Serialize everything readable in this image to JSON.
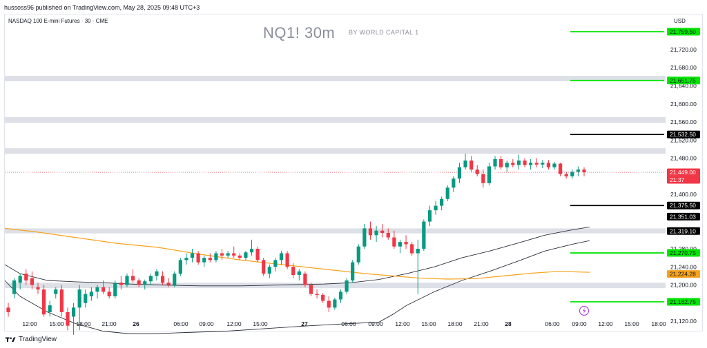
{
  "header": {
    "published_by": "hussoss96 published on TradingView.com, May 28, 2025 09:48 UTC+3",
    "symbol_line": "NASDAQ 100 E-mini Futures · 30 · CME",
    "watermark_title": "NQ1! 30m",
    "watermark_subtitle": "BY WORLD CAPITAL 1",
    "currency": "USD"
  },
  "footer": {
    "brand": "TradingView"
  },
  "colors": {
    "up": "#089981",
    "down": "#f23645",
    "green_line": "#00e600",
    "black_line": "#000000",
    "zone": "#dde0e6",
    "ma_orange": "#f7a21b",
    "band": "#2a2e39",
    "last_price": "#f23645",
    "orange_tag": "#f7a21b"
  },
  "chart_data": {
    "type": "candlestick",
    "y_axis": {
      "range": [
        21086,
        21800
      ],
      "ticks": [
        "21,720.00",
        "21,680.00",
        "21,640.00",
        "21,600.00",
        "21,560.00",
        "21,520.00",
        "21,480.00",
        "21,400.00",
        "21,280.00",
        "21,240.00",
        "21,200.00",
        "21,120.00"
      ],
      "tick_values": [
        21720,
        21680,
        21640,
        21600,
        21560,
        21520,
        21480,
        21400,
        21280,
        21240,
        21200,
        21120
      ]
    },
    "x_axis": {
      "labels": [
        "12:00",
        "15:00",
        "18:00",
        "21:00",
        "26",
        "06:00",
        "09:00",
        "12:00",
        "15:00",
        "27",
        "06:00",
        "09:00",
        "12:00",
        "15:00",
        "18:00",
        "21:00",
        "28",
        "06:00",
        "09:00",
        "12:00",
        "15:00",
        "18:00"
      ],
      "bold": [
        "26",
        "27",
        "28"
      ]
    },
    "zones": [
      [
        21650,
        21662
      ],
      [
        21558,
        21571
      ],
      [
        21490,
        21502
      ],
      [
        21314,
        21325
      ],
      [
        21193,
        21205
      ]
    ],
    "level_lines": [
      {
        "price": 21759.5,
        "label": "21,759.50",
        "color": "green"
      },
      {
        "price": 21651.75,
        "label": "21,651.75",
        "color": "green"
      },
      {
        "price": 21532.5,
        "label": "21,532.50",
        "color": "black"
      },
      {
        "price": 21375.5,
        "label": "21,375.50",
        "color": "black"
      },
      {
        "price": 21270.75,
        "label": "21,270.75",
        "color": "green"
      },
      {
        "price": 21162.75,
        "label": "21,162.75",
        "color": "green"
      }
    ],
    "price_tags": [
      {
        "price": 21449.0,
        "label": "21,449.00",
        "sub": "21:37",
        "type": "last"
      },
      {
        "price": 21351.03,
        "label": "21,351.03",
        "type": "dark"
      },
      {
        "price": 21319.1,
        "label": "21,319.10",
        "type": "dark"
      },
      {
        "price": 21224.28,
        "label": "21,224.28",
        "type": "orange"
      }
    ],
    "last_price": 21449.0,
    "candles": [
      [
        21150,
        21160,
        21130,
        21140
      ],
      [
        21180,
        21215,
        21170,
        21210
      ],
      [
        21205,
        21225,
        21190,
        21220
      ],
      [
        21225,
        21235,
        21200,
        21210
      ],
      [
        21215,
        21230,
        21190,
        21200
      ],
      [
        21195,
        21205,
        21180,
        21190
      ],
      [
        21190,
        21200,
        21130,
        21135
      ],
      [
        21140,
        21165,
        21130,
        21155
      ],
      [
        21180,
        21195,
        21170,
        21190
      ],
      [
        21190,
        21200,
        21130,
        21140
      ],
      [
        21140,
        21150,
        21100,
        21110
      ],
      [
        21130,
        21160,
        21090,
        21150
      ],
      [
        21150,
        21200,
        21100,
        21190
      ],
      [
        21160,
        21190,
        21150,
        21180
      ],
      [
        21175,
        21195,
        21165,
        21185
      ],
      [
        21185,
        21200,
        21170,
        21195
      ],
      [
        21195,
        21210,
        21180,
        21185
      ],
      [
        21185,
        21195,
        21170,
        21175
      ],
      [
        21175,
        21210,
        21170,
        21205
      ],
      [
        21205,
        21220,
        21190,
        21200
      ],
      [
        21200,
        21225,
        21195,
        21220
      ],
      [
        21220,
        21235,
        21205,
        21210
      ],
      [
        21210,
        21215,
        21195,
        21200
      ],
      [
        21200,
        21212,
        21190,
        21208
      ],
      [
        21208,
        21225,
        21200,
        21220
      ],
      [
        21220,
        21235,
        21210,
        21230
      ],
      [
        21220,
        21230,
        21200,
        21205
      ],
      [
        21205,
        21215,
        21195,
        21200
      ],
      [
        21200,
        21230,
        21195,
        21225
      ],
      [
        21225,
        21260,
        21220,
        21255
      ],
      [
        21255,
        21270,
        21245,
        21260
      ],
      [
        21260,
        21280,
        21250,
        21270
      ],
      [
        21270,
        21275,
        21245,
        21250
      ],
      [
        21250,
        21265,
        21240,
        21260
      ],
      [
        21260,
        21270,
        21250,
        21255
      ],
      [
        21255,
        21275,
        21250,
        21270
      ],
      [
        21270,
        21280,
        21255,
        21265
      ],
      [
        21265,
        21275,
        21260,
        21270
      ],
      [
        21270,
        21285,
        21260,
        21265
      ],
      [
        21265,
        21270,
        21255,
        21260
      ],
      [
        21260,
        21275,
        21255,
        21272
      ],
      [
        21272,
        21300,
        21265,
        21280
      ],
      [
        21280,
        21285,
        21250,
        21255
      ],
      [
        21255,
        21260,
        21220,
        21225
      ],
      [
        21225,
        21245,
        21215,
        21240
      ],
      [
        21240,
        21260,
        21230,
        21255
      ],
      [
        21255,
        21275,
        21245,
        21270
      ],
      [
        21270,
        21275,
        21235,
        21240
      ],
      [
        21240,
        21248,
        21215,
        21222
      ],
      [
        21222,
        21235,
        21210,
        21230
      ],
      [
        21225,
        21230,
        21195,
        21200
      ],
      [
        21200,
        21205,
        21175,
        21180
      ],
      [
        21180,
        21190,
        21170,
        21178
      ],
      [
        21178,
        21182,
        21160,
        21165
      ],
      [
        21165,
        21175,
        21140,
        21150
      ],
      [
        21150,
        21172,
        21145,
        21168
      ],
      [
        21168,
        21190,
        21160,
        21185
      ],
      [
        21185,
        21215,
        21180,
        21210
      ],
      [
        21210,
        21255,
        21205,
        21250
      ],
      [
        21250,
        21290,
        21245,
        21285
      ],
      [
        21285,
        21335,
        21280,
        21325
      ],
      [
        21325,
        21340,
        21300,
        21310
      ],
      [
        21310,
        21330,
        21295,
        21320
      ],
      [
        21320,
        21335,
        21305,
        21315
      ],
      [
        21315,
        21325,
        21300,
        21305
      ],
      [
        21305,
        21320,
        21280,
        21285
      ],
      [
        21285,
        21300,
        21270,
        21295
      ],
      [
        21295,
        21310,
        21280,
        21290
      ],
      [
        21290,
        21295,
        21265,
        21270
      ],
      [
        21270,
        21300,
        21180,
        21280
      ],
      [
        21280,
        21345,
        21275,
        21340
      ],
      [
        21340,
        21375,
        21330,
        21365
      ],
      [
        21365,
        21385,
        21355,
        21375
      ],
      [
        21375,
        21395,
        21365,
        21390
      ],
      [
        21390,
        21420,
        21385,
        21415
      ],
      [
        21415,
        21440,
        21405,
        21435
      ],
      [
        21435,
        21470,
        21425,
        21460
      ],
      [
        21460,
        21490,
        21455,
        21475
      ],
      [
        21475,
        21485,
        21450,
        21455
      ],
      [
        21455,
        21465,
        21440,
        21445
      ],
      [
        21445,
        21455,
        21415,
        21425
      ],
      [
        21425,
        21470,
        21420,
        21462
      ],
      [
        21462,
        21485,
        21455,
        21478
      ],
      [
        21478,
        21485,
        21455,
        21460
      ],
      [
        21460,
        21475,
        21450,
        21470
      ],
      [
        21470,
        21478,
        21460,
        21465
      ],
      [
        21465,
        21488,
        21455,
        21475
      ],
      [
        21475,
        21480,
        21460,
        21465
      ],
      [
        21465,
        21478,
        21455,
        21470
      ],
      [
        21470,
        21480,
        21460,
        21466
      ],
      [
        21466,
        21476,
        21458,
        21470
      ],
      [
        21470,
        21476,
        21455,
        21460
      ],
      [
        21460,
        21472,
        21455,
        21468
      ],
      [
        21468,
        21470,
        21440,
        21445
      ],
      [
        21445,
        21450,
        21435,
        21440
      ],
      [
        21440,
        21455,
        21435,
        21450
      ],
      [
        21450,
        21462,
        21440,
        21455
      ],
      [
        21455,
        21460,
        21440,
        21449
      ]
    ],
    "moving_average": [
      [
        -2,
        21325
      ],
      [
        40,
        21318
      ],
      [
        100,
        21305
      ],
      [
        160,
        21292
      ],
      [
        220,
        21283
      ],
      [
        280,
        21268
      ],
      [
        340,
        21255
      ],
      [
        400,
        21245
      ],
      [
        460,
        21235
      ],
      [
        520,
        21225
      ],
      [
        560,
        21220
      ],
      [
        600,
        21215
      ],
      [
        640,
        21213
      ],
      [
        680,
        21214
      ],
      [
        720,
        21220
      ],
      [
        760,
        21226
      ],
      [
        800,
        21230
      ],
      [
        845,
        21228
      ]
    ],
    "band_upper": [
      [
        -2,
        21245
      ],
      [
        20,
        21225
      ],
      [
        60,
        21210
      ],
      [
        100,
        21207
      ],
      [
        140,
        21205
      ],
      [
        180,
        21202
      ],
      [
        220,
        21200
      ],
      [
        280,
        21198
      ],
      [
        340,
        21198
      ],
      [
        400,
        21200
      ],
      [
        460,
        21202
      ],
      [
        500,
        21205
      ],
      [
        540,
        21212
      ],
      [
        580,
        21225
      ],
      [
        620,
        21240
      ],
      [
        660,
        21260
      ],
      [
        700,
        21275
      ],
      [
        740,
        21292
      ],
      [
        780,
        21310
      ],
      [
        820,
        21322
      ],
      [
        845,
        21328
      ]
    ],
    "band_lower": [
      [
        -2,
        21210
      ],
      [
        20,
        21175
      ],
      [
        60,
        21140
      ],
      [
        100,
        21115
      ],
      [
        140,
        21098
      ],
      [
        180,
        21092
      ],
      [
        210,
        21092
      ],
      [
        260,
        21095
      ],
      [
        320,
        21098
      ],
      [
        380,
        21104
      ],
      [
        440,
        21110
      ],
      [
        500,
        21115
      ],
      [
        540,
        21118
      ],
      [
        560,
        21135
      ],
      [
        580,
        21155
      ],
      [
        620,
        21185
      ],
      [
        660,
        21210
      ],
      [
        700,
        21230
      ],
      [
        740,
        21252
      ],
      [
        780,
        21275
      ],
      [
        820,
        21290
      ],
      [
        845,
        21298
      ]
    ]
  }
}
